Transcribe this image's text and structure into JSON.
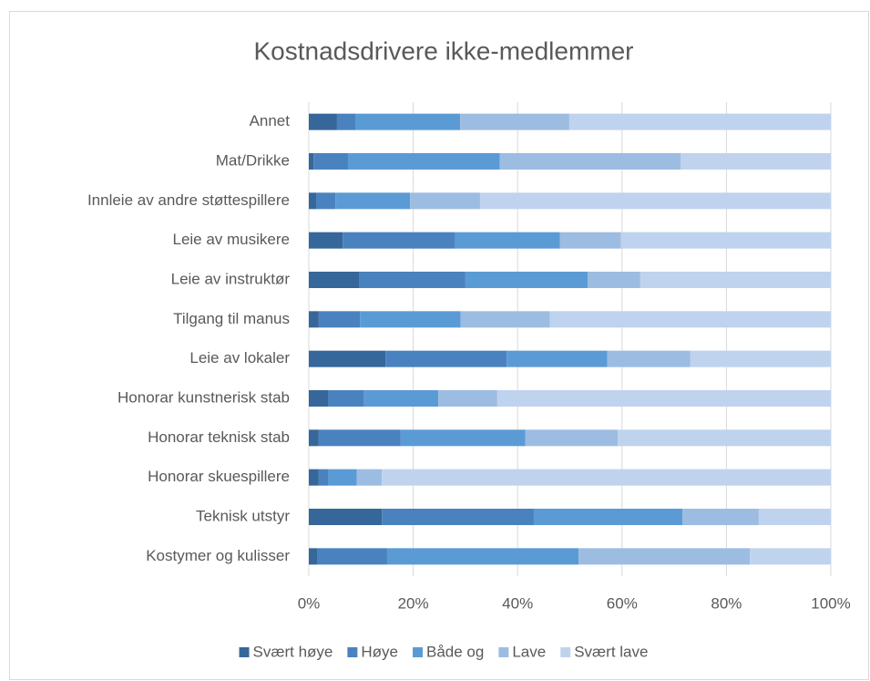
{
  "chart_data": {
    "type": "bar",
    "orientation": "horizontal",
    "stacked": true,
    "title": "Kostnadsdrivere ikke-medlemmer",
    "categories": [
      "Annet",
      "Mat/Drikke",
      "Innleie av andre støttespillere",
      "Leie av musikere",
      "Leie av instruktør",
      "Tilgang til manus",
      "Leie av lokaler",
      "Honorar kunstnerisk stab",
      "Honorar teknisk stab",
      "Honorar skuespillere",
      "Teknisk utstyr",
      "Kostymer og kulisser"
    ],
    "series": [
      {
        "name": "Svært høye",
        "color": "#36679b",
        "values": [
          5.4,
          0.9,
          1.4,
          6.5,
          9.6,
          1.9,
          14.7,
          3.8,
          1.9,
          1.9,
          14.0,
          1.7
        ]
      },
      {
        "name": "Høye",
        "color": "#4a82bf",
        "values": [
          3.5,
          6.6,
          3.7,
          21.5,
          20.4,
          7.9,
          23.2,
          6.8,
          15.7,
          1.9,
          29.1,
          13.3
        ]
      },
      {
        "name": "Både og",
        "color": "#5b9bd5",
        "values": [
          20.1,
          29.1,
          14.3,
          20.1,
          23.4,
          19.3,
          19.3,
          14.2,
          23.9,
          5.4,
          28.5,
          36.7
        ]
      },
      {
        "name": "Lave",
        "color": "#9dbce2",
        "values": [
          20.9,
          34.6,
          13.4,
          11.7,
          10.1,
          17.1,
          15.9,
          11.3,
          17.7,
          4.8,
          14.6,
          32.8
        ]
      },
      {
        "name": "Svært lave",
        "color": "#bfd3ee",
        "values": [
          50.1,
          28.8,
          67.2,
          40.3,
          36.5,
          53.8,
          26.9,
          63.9,
          40.8,
          86.0,
          13.8,
          15.5
        ]
      }
    ],
    "xlim": [
      0,
      100
    ],
    "xticks": [
      {
        "value": 0,
        "label": "0%"
      },
      {
        "value": 20,
        "label": "20%"
      },
      {
        "value": 40,
        "label": "40%"
      },
      {
        "value": 60,
        "label": "60%"
      },
      {
        "value": 80,
        "label": "80%"
      },
      {
        "value": 100,
        "label": "100%"
      }
    ],
    "grid": true,
    "legend": "bottom"
  }
}
